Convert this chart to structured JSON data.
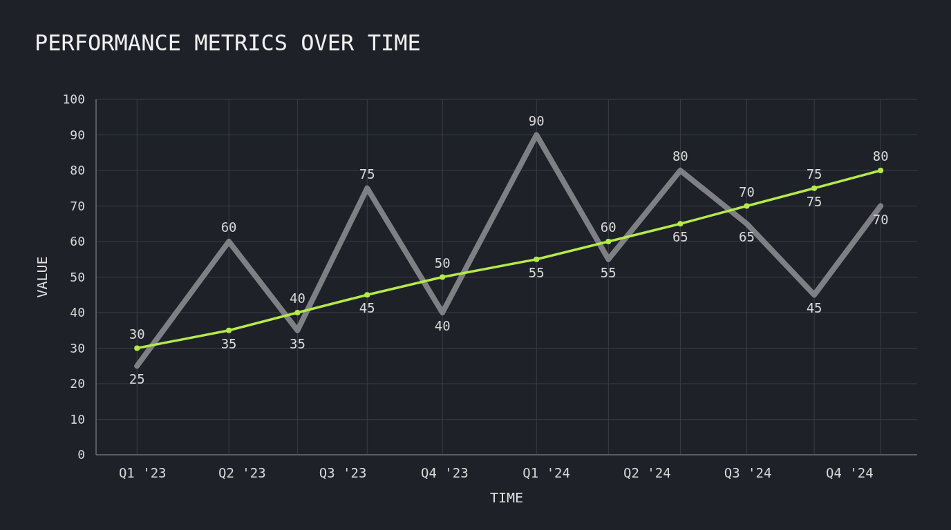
{
  "chart_data": {
    "type": "line",
    "title": "PERFORMANCE METRICS OVER TIME",
    "xlabel": "TIME",
    "ylabel": "VALUE",
    "x": [
      "2022-12-27",
      "2023-03-20",
      "2023-05-21",
      "2023-07-23",
      "2023-09-29",
      "2023-12-23",
      "2024-02-26",
      "2024-05-01",
      "2024-06-30",
      "2024-08-30",
      "2024-10-29"
    ],
    "series": [
      {
        "color": "#7e8084",
        "marker": "none",
        "values": [
          25,
          60,
          35,
          75,
          40,
          90,
          55,
          80,
          65,
          45,
          70
        ]
      },
      {
        "color": "#b4ea4a",
        "marker": "circle",
        "values": [
          30,
          35,
          40,
          45,
          50,
          55,
          60,
          65,
          70,
          75,
          80
        ]
      }
    ],
    "xlim": [
      "2022-11-20",
      "2024-12-01"
    ],
    "xticks": [
      {
        "value": "2023-01-01",
        "label": "Q1 '23"
      },
      {
        "value": "2023-04-01",
        "label": "Q2 '23"
      },
      {
        "value": "2023-07-01",
        "label": "Q3 '23"
      },
      {
        "value": "2023-10-01",
        "label": "Q4 '23"
      },
      {
        "value": "2024-01-01",
        "label": "Q1 '24"
      },
      {
        "value": "2024-04-01",
        "label": "Q2 '24"
      },
      {
        "value": "2024-07-01",
        "label": "Q3 '24"
      },
      {
        "value": "2024-10-01",
        "label": "Q4 '24"
      },
      {
        "value": "2022-12-27",
        "label": null
      },
      {
        "value": "2023-03-20",
        "label": null
      },
      {
        "value": "2023-05-21",
        "label": null
      },
      {
        "value": "2023-07-23",
        "label": null
      },
      {
        "value": "2023-09-29",
        "label": null
      },
      {
        "value": "2023-12-23",
        "label": null
      },
      {
        "value": "2024-02-26",
        "label": null
      },
      {
        "value": "2024-05-01",
        "label": null
      },
      {
        "value": "2024-06-30",
        "label": null
      },
      {
        "value": "2024-08-30",
        "label": null
      },
      {
        "value": "2024-10-29",
        "label": null
      }
    ],
    "ylim": [
      0,
      100
    ],
    "yticks": [
      0,
      10,
      20,
      30,
      40,
      50,
      60,
      70,
      80,
      90,
      100
    ],
    "grid": true,
    "data_labels": true,
    "annotations": [
      {
        "text": "75",
        "x": "2024-08-30",
        "y": 75
      }
    ]
  }
}
